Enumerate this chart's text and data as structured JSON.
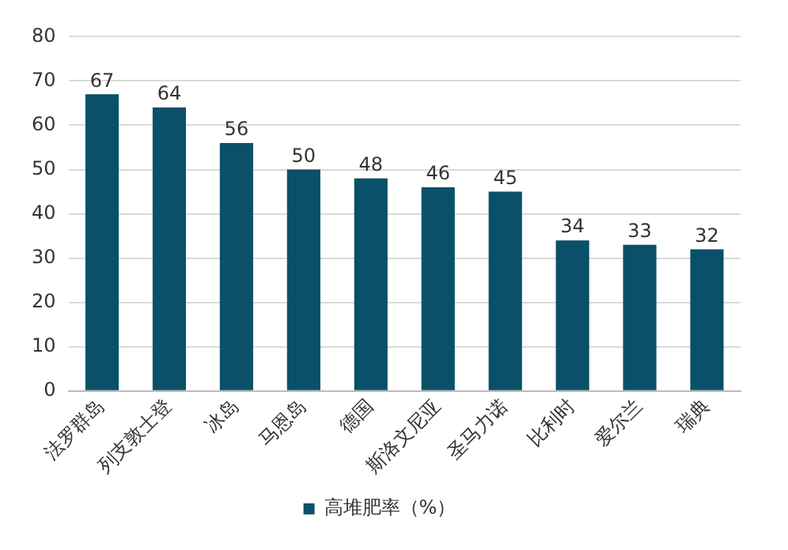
{
  "chart_data": {
    "type": "bar",
    "categories": [
      "法罗群岛",
      "列支敦士登",
      "冰岛",
      "马恩岛",
      "德国",
      "斯洛文尼亚",
      "圣马力诺",
      "比利时",
      "爱尔兰",
      "瑞典"
    ],
    "series": [
      {
        "name": "高堆肥率（%）",
        "color": "#0b5069",
        "values": [
          67,
          64,
          56,
          50,
          48,
          46,
          45,
          34,
          33,
          32
        ]
      }
    ],
    "ylim": [
      0,
      80
    ],
    "yticks": [
      0,
      10,
      20,
      30,
      40,
      50,
      60,
      70,
      80
    ],
    "grid": "y",
    "legend": "bottom",
    "data_labels": true
  }
}
